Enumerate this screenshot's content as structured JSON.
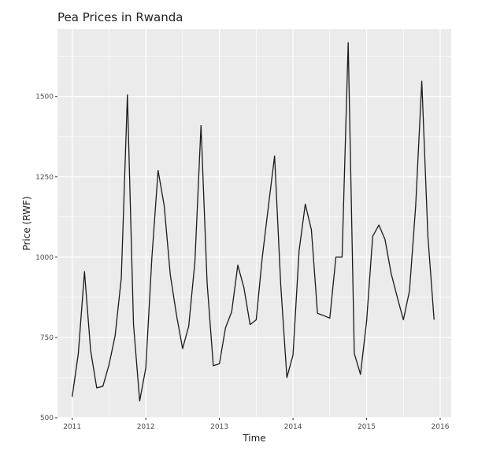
{
  "chart_data": {
    "type": "line",
    "title": "Pea Prices in Rwanda",
    "xlabel": "Time",
    "ylabel": "Price (RWF)",
    "xlim": [
      2010.8,
      2016.15
    ],
    "ylim": [
      500,
      1710
    ],
    "x_ticks": [
      2011,
      2012,
      2013,
      2014,
      2015,
      2016
    ],
    "x_tick_labels": [
      "2011",
      "2012",
      "2013",
      "2014",
      "2015",
      "2016"
    ],
    "y_ticks": [
      500,
      750,
      1000,
      1250,
      1500
    ],
    "y_tick_labels": [
      "500",
      "750",
      "1000",
      "1250",
      "1500"
    ],
    "grid": true,
    "background": "#ebebeb",
    "line_color": "#1a1a1a",
    "series": [
      {
        "x": [
          2011.0,
          2011.083,
          2011.167,
          2011.25,
          2011.333,
          2011.417,
          2011.5,
          2011.583,
          2011.667,
          2011.75,
          2011.833,
          2011.917,
          2012.0,
          2012.083,
          2012.167,
          2012.25,
          2012.333,
          2012.417,
          2012.5,
          2012.583,
          2012.667,
          2012.75,
          2012.833,
          2012.917,
          2013.0,
          2013.083,
          2013.167,
          2013.25,
          2013.333,
          2013.417,
          2013.5,
          2013.583,
          2013.667,
          2013.75,
          2013.833,
          2013.917,
          2014.0,
          2014.083,
          2014.167,
          2014.25,
          2014.333,
          2014.417,
          2014.5,
          2014.583,
          2014.667,
          2014.75,
          2014.833,
          2014.917,
          2015.0,
          2015.083,
          2015.167,
          2015.25,
          2015.333,
          2015.417,
          2015.5,
          2015.583,
          2015.667,
          2015.75,
          2015.833,
          2015.917
        ],
        "y": [
          565,
          700,
          955,
          710,
          593,
          598,
          665,
          755,
          935,
          1505,
          790,
          552,
          655,
          1000,
          1270,
          1160,
          945,
          820,
          715,
          785,
          985,
          1410,
          920,
          662,
          668,
          780,
          830,
          975,
          905,
          790,
          805,
          1000,
          1160,
          1315,
          915,
          625,
          695,
          1020,
          1165,
          1085,
          825,
          818,
          810,
          1000,
          1000,
          1668,
          700,
          635,
          800,
          1065,
          1100,
          1055,
          950,
          875,
          805,
          895,
          1160,
          1548,
          1065,
          805
        ]
      }
    ]
  }
}
